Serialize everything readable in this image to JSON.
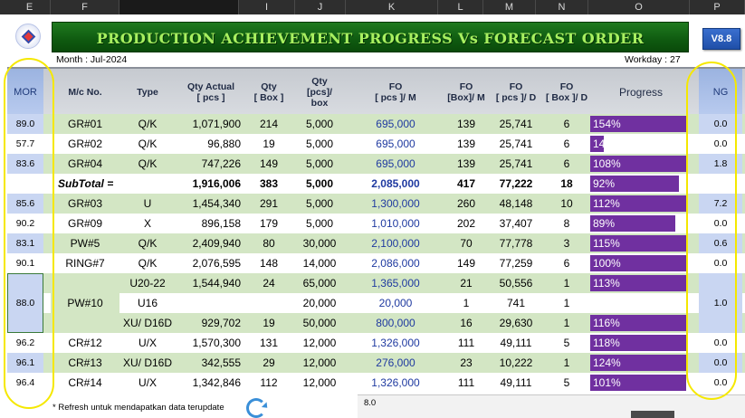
{
  "column_headers": [
    "E",
    "F",
    "",
    "I",
    "J",
    "K",
    "L",
    "M",
    "N",
    "O",
    "P"
  ],
  "title": "PRODUCTION ACHIEVEMENT PROGRESS  Vs FORECAST ORDER",
  "version": "V8.8",
  "month_label": "Month :  Jul-2024",
  "workday_label": "Workday :  27",
  "table_headers": {
    "mor": "MOR",
    "mc_no": "M/c No.",
    "type": "Type",
    "qty_actual": "Qty Actual\n[ pcs ]",
    "qty_box": "Qty\n[ Box ]",
    "qty_per_box": "Qty\n[pcs]/\nbox",
    "fo_pcs_m": "FO\n[ pcs ]/ M",
    "fo_box_m": "FO\n[Box]/ M",
    "fo_pcs_d": "FO\n[ pcs ]/ D",
    "fo_box_d": "FO\n[ Box ]/ D",
    "progress": "Progress",
    "ng": "NG"
  },
  "rows": [
    {
      "mor": "89.0",
      "mc": "GR#01",
      "type": "Q/K",
      "qty_actual": "1,071,900",
      "qty_box": "214",
      "per_box": "5,000",
      "fo_pcs_m": "695,000",
      "fo_box_m": "139",
      "fo_pcs_d": "25,741",
      "fo_box_d": "6",
      "progress": "154%",
      "progress_value": 154,
      "ng": "0.0"
    },
    {
      "mor": "57.7",
      "mc": "GR#02",
      "type": "Q/K",
      "qty_actual": "96,880",
      "qty_box": "19",
      "per_box": "5,000",
      "fo_pcs_m": "695,000",
      "fo_box_m": "139",
      "fo_pcs_d": "25,741",
      "fo_box_d": "6",
      "progress": "14",
      "progress_value": 14,
      "ng": "0.0"
    },
    {
      "mor": "83.6",
      "mc": "GR#04",
      "type": "Q/K",
      "qty_actual": "747,226",
      "qty_box": "149",
      "per_box": "5,000",
      "fo_pcs_m": "695,000",
      "fo_box_m": "139",
      "fo_pcs_d": "25,741",
      "fo_box_d": "6",
      "progress": "108%",
      "progress_value": 108,
      "ng": "1.8"
    }
  ],
  "subtotal": {
    "label": "SubTotal =",
    "qty_actual": "1,916,006",
    "qty_box": "383",
    "per_box": "5,000",
    "fo_pcs_m": "2,085,000",
    "fo_box_m": "417",
    "fo_pcs_d": "77,222",
    "fo_box_d": "18",
    "progress": "92%",
    "progress_value": 92
  },
  "rows2": [
    {
      "mor": "85.6",
      "mc": "GR#03",
      "type": "U",
      "qty_actual": "1,454,340",
      "qty_box": "291",
      "per_box": "5,000",
      "fo_pcs_m": "1,300,000",
      "fo_box_m": "260",
      "fo_pcs_d": "48,148",
      "fo_box_d": "10",
      "progress": "112%",
      "progress_value": 112,
      "ng": "7.2"
    },
    {
      "mor": "90.2",
      "mc": "GR#09",
      "type": "X",
      "qty_actual": "896,158",
      "qty_box": "179",
      "per_box": "5,000",
      "fo_pcs_m": "1,010,000",
      "fo_box_m": "202",
      "fo_pcs_d": "37,407",
      "fo_box_d": "8",
      "progress": "89%",
      "progress_value": 89,
      "ng": "0.0"
    },
    {
      "mor": "83.1",
      "mc": "PW#5",
      "type": "Q/K",
      "qty_actual": "2,409,940",
      "qty_box": "80",
      "per_box": "30,000",
      "fo_pcs_m": "2,100,000",
      "fo_box_m": "70",
      "fo_pcs_d": "77,778",
      "fo_box_d": "3",
      "progress": "115%",
      "progress_value": 115,
      "ng": "0.6"
    },
    {
      "mor": "90.1",
      "mc": "RING#7",
      "type": "Q/K",
      "qty_actual": "2,076,595",
      "qty_box": "148",
      "per_box": "14,000",
      "fo_pcs_m": "2,086,000",
      "fo_box_m": "149",
      "fo_pcs_d": "77,259",
      "fo_box_d": "6",
      "progress": "100%",
      "progress_value": 100,
      "ng": "0.0"
    }
  ],
  "pw10": {
    "mor": "88.0",
    "mc": "PW#10",
    "ng": "1.0",
    "rows": [
      {
        "type": "U20-22",
        "qty_actual": "1,544,940",
        "qty_box": "24",
        "per_box": "65,000",
        "fo_pcs_m": "1,365,000",
        "fo_box_m": "21",
        "fo_pcs_d": "50,556",
        "fo_box_d": "1",
        "progress": "113%",
        "progress_value": 113
      },
      {
        "type": "U16",
        "qty_actual": "",
        "qty_box": "",
        "per_box": "20,000",
        "fo_pcs_m": "20,000",
        "fo_box_m": "1",
        "fo_pcs_d": "741",
        "fo_box_d": "1",
        "progress": "",
        "progress_value": 0
      },
      {
        "type": "XU/ D16D",
        "qty_actual": "929,702",
        "qty_box": "19",
        "per_box": "50,000",
        "fo_pcs_m": "800,000",
        "fo_box_m": "16",
        "fo_pcs_d": "29,630",
        "fo_box_d": "1",
        "progress": "116%",
        "progress_value": 116
      }
    ]
  },
  "rows3": [
    {
      "mor": "96.2",
      "mc": "CR#12",
      "type": "U/X",
      "qty_actual": "1,570,300",
      "qty_box": "131",
      "per_box": "12,000",
      "fo_pcs_m": "1,326,000",
      "fo_box_m": "111",
      "fo_pcs_d": "49,111",
      "fo_box_d": "5",
      "progress": "118%",
      "progress_value": 118,
      "ng": "0.0"
    },
    {
      "mor": "96.1",
      "mc": "CR#13",
      "type": "XU/ D16D",
      "qty_actual": "342,555",
      "qty_box": "29",
      "per_box": "12,000",
      "fo_pcs_m": "276,000",
      "fo_box_m": "23",
      "fo_pcs_d": "10,222",
      "fo_box_d": "1",
      "progress": "124%",
      "progress_value": 124,
      "ng": "0.0"
    },
    {
      "mor": "96.4",
      "mc": "CR#14",
      "type": "U/X",
      "qty_actual": "1,342,846",
      "qty_box": "112",
      "per_box": "12,000",
      "fo_pcs_m": "1,326,000",
      "fo_box_m": "111",
      "fo_pcs_d": "49,111",
      "fo_box_d": "5",
      "progress": "101%",
      "progress_value": 101,
      "ng": "0.0"
    }
  ],
  "footer_note": "* Refresh untuk mendapatkan data terupdate",
  "footer_value": "8.0",
  "colors": {
    "title_green": "#0f5a10",
    "title_text": "#a8f060",
    "bar_purple": "#7030a0",
    "row_green": "#d3e6c4",
    "mor_tint": "#c9d6f2",
    "annotation_yellow": "#f5e800"
  },
  "icons": [
    "company-logo-icon",
    "refresh-icon"
  ]
}
